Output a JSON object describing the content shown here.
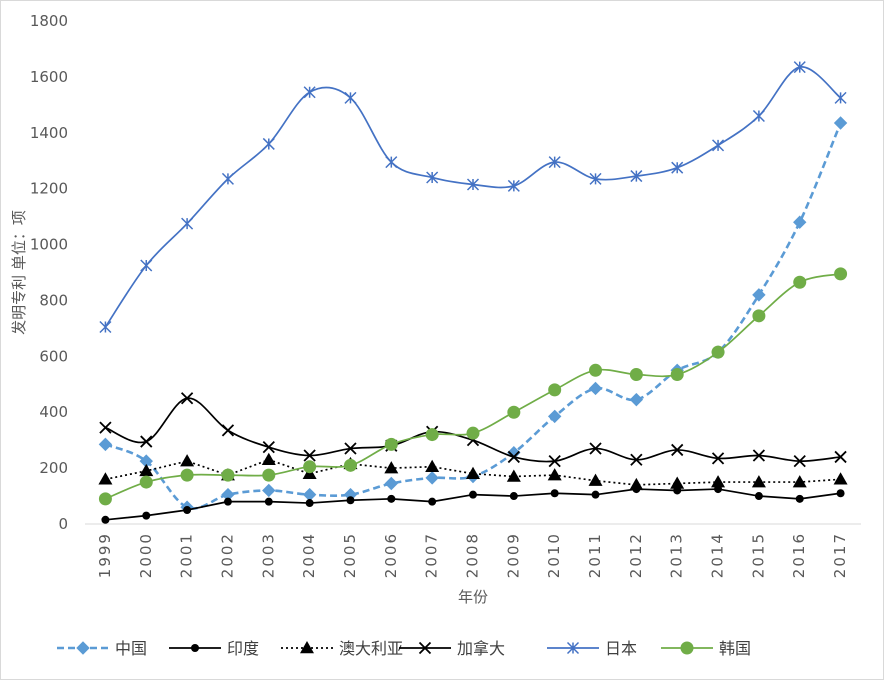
{
  "chart_data": {
    "type": "line",
    "xlabel": "年份",
    "ylabel": "发明专利 单位：项",
    "ylim": [
      0,
      1800
    ],
    "yticks": [
      0,
      200,
      400,
      600,
      800,
      1000,
      1200,
      1400,
      1600,
      1800
    ],
    "grid": false,
    "legend_position": "bottom",
    "categories": [
      "1999",
      "2000",
      "2001",
      "2002",
      "2003",
      "2004",
      "2005",
      "2006",
      "2007",
      "2008",
      "2009",
      "2010",
      "2011",
      "2012",
      "2013",
      "2014",
      "2015",
      "2016",
      "2017"
    ],
    "series": [
      {
        "name": "中国",
        "color": "#5B9BD5",
        "marker": "diamond",
        "dash": "dashed",
        "smooth": true,
        "values": [
          285,
          225,
          60,
          105,
          120,
          105,
          105,
          145,
          165,
          170,
          255,
          385,
          485,
          445,
          550,
          615,
          820,
          1080,
          1435
        ]
      },
      {
        "name": "印度",
        "color": "#000000",
        "marker": "circle",
        "dash": "solid",
        "smooth": false,
        "values": [
          15,
          30,
          50,
          80,
          80,
          75,
          85,
          90,
          80,
          105,
          100,
          110,
          105,
          125,
          120,
          125,
          100,
          90,
          110
        ]
      },
      {
        "name": "澳大利亚",
        "color": "#000000",
        "marker": "triangle",
        "dash": "dotted",
        "smooth": false,
        "values": [
          160,
          190,
          225,
          175,
          230,
          180,
          215,
          200,
          205,
          180,
          170,
          175,
          155,
          140,
          145,
          150,
          150,
          150,
          160
        ]
      },
      {
        "name": "加拿大",
        "color": "#000000",
        "marker": "x",
        "dash": "solid",
        "smooth": true,
        "values": [
          345,
          295,
          450,
          335,
          275,
          245,
          270,
          280,
          330,
          300,
          240,
          225,
          270,
          230,
          265,
          235,
          245,
          225,
          240
        ]
      },
      {
        "name": "日本",
        "color": "#4472C4",
        "marker": "star",
        "dash": "solid",
        "smooth": true,
        "values": [
          705,
          925,
          1075,
          1235,
          1360,
          1545,
          1525,
          1295,
          1240,
          1215,
          1210,
          1295,
          1235,
          1245,
          1275,
          1355,
          1460,
          1635,
          1525
        ]
      },
      {
        "name": "韩国",
        "color": "#70AD47",
        "marker": "circle-large",
        "dash": "solid",
        "smooth": true,
        "values": [
          90,
          150,
          175,
          175,
          175,
          205,
          210,
          285,
          320,
          325,
          400,
          480,
          550,
          535,
          535,
          615,
          745,
          865,
          895
        ]
      }
    ]
  }
}
